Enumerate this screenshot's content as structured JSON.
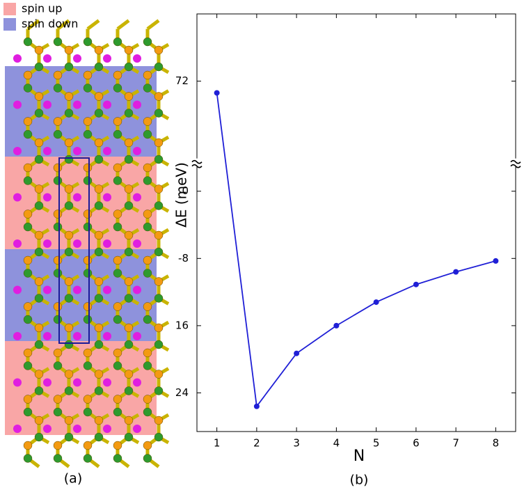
{
  "panel_a": {
    "legend": [
      {
        "label": "spin up",
        "color": "#f9a6a6"
      },
      {
        "label": "spin down",
        "color": "#8e92dc"
      }
    ],
    "caption": "(a)"
  },
  "chart_data": {
    "type": "line",
    "caption": "(b)",
    "x_label": "N",
    "y_label": "ΔE (meV)",
    "x": [
      1,
      2,
      3,
      4,
      5,
      6,
      7,
      8
    ],
    "series": [
      {
        "color": "#1f1fd6",
        "values": [
          70.6,
          -25.6,
          -19.3,
          -16.0,
          -13.2,
          -11.1,
          -9.6,
          -8.3
        ]
      }
    ],
    "xlim": [
      0.5,
      8.5
    ],
    "xticks": [
      1,
      2,
      3,
      4,
      5,
      6,
      7,
      8
    ],
    "ylim": [
      -28.6,
      80
    ],
    "ybreak": [
      3.4,
      62.3
    ],
    "yticks": [
      72,
      0,
      -8,
      {
        "value": -16,
        "label": "16"
      },
      {
        "value": -24,
        "label": "24"
      }
    ]
  }
}
